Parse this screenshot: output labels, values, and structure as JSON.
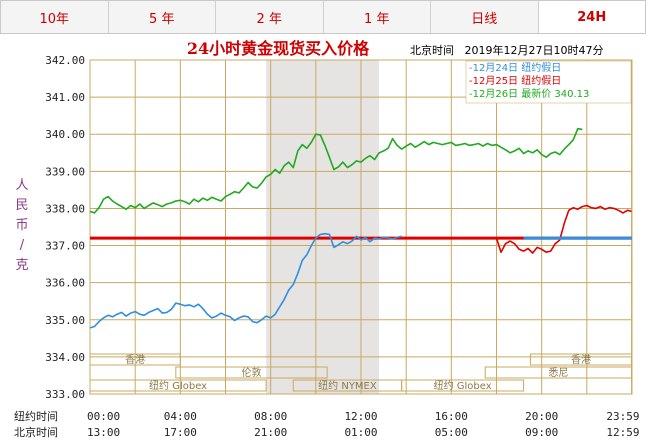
{
  "tabs": [
    {
      "label": "10年",
      "active": false
    },
    {
      "label": "5 年",
      "active": false
    },
    {
      "label": "2 年",
      "active": false
    },
    {
      "label": "1 年",
      "active": false
    },
    {
      "label": "日线",
      "active": false
    },
    {
      "label": "24H",
      "active": true
    }
  ],
  "chart_data": {
    "type": "line",
    "title": "24小时黄金现货买入价格",
    "datetime_label": "北京时间   2019年12月27日10时47分",
    "ylabel": "人民币/克",
    "ylim": [
      333,
      342
    ],
    "yticks": [
      "342.00",
      "341.00",
      "340.00",
      "339.00",
      "338.00",
      "337.00",
      "336.00",
      "335.00",
      "334.00",
      "333.00"
    ],
    "grid": true,
    "legend_position": "top-right",
    "x_axis": {
      "row1_label": "纽约时间",
      "row1_ticks": [
        "00:00",
        "04:00",
        "08:00",
        "12:00",
        "16:00",
        "20:00",
        "23:59"
      ],
      "row2_label": "北京时间",
      "row2_ticks": [
        "13:00",
        "17:00",
        "21:00",
        "01:00",
        "05:00",
        "09:00",
        "12:59"
      ]
    },
    "series": [
      {
        "name": "12月24日   纽约假日",
        "color": "#2f8fe0",
        "x": [
          0,
          0.2,
          0.4,
          0.6,
          0.8,
          1,
          1.2,
          1.4,
          1.6,
          1.8,
          2,
          2.2,
          2.4,
          2.6,
          2.8,
          3,
          3.2,
          3.4,
          3.6,
          3.8,
          4,
          4.2,
          4.4,
          4.6,
          4.8,
          5,
          5.2,
          5.4,
          5.6,
          5.8,
          6,
          6.2,
          6.4,
          6.6,
          6.8,
          7,
          7.2,
          7.4,
          7.6,
          7.8,
          8,
          8.2,
          8.4,
          8.6,
          8.8,
          9,
          9.2,
          9.4,
          9.6,
          9.8,
          10,
          10.2,
          10.4,
          10.6,
          10.8,
          11,
          11.2,
          11.4,
          11.6,
          11.8,
          12,
          12.2,
          12.4,
          12.6,
          12.8,
          13,
          13.2,
          13.4,
          13.6,
          13.8
        ],
        "y": [
          334.78,
          334.82,
          334.95,
          335.05,
          335.12,
          335.08,
          335.15,
          335.2,
          335.1,
          335.18,
          335.22,
          335.15,
          335.12,
          335.2,
          335.25,
          335.3,
          335.18,
          335.2,
          335.28,
          335.45,
          335.42,
          335.38,
          335.4,
          335.35,
          335.42,
          335.3,
          335.15,
          335.05,
          335.1,
          335.18,
          335.12,
          335.08,
          334.98,
          335.05,
          335.1,
          335.08,
          334.95,
          334.92,
          335.0,
          335.1,
          335.05,
          335.15,
          335.35,
          335.55,
          335.8,
          335.95,
          336.25,
          336.6,
          336.75,
          337.0,
          337.2,
          337.3,
          337.32,
          337.3,
          336.95,
          337.02,
          337.1,
          337.05,
          337.12,
          337.25,
          337.15,
          337.22,
          337.1,
          337.2,
          337.18,
          337.22,
          337.2,
          337.18,
          337.22,
          337.25
        ]
      },
      {
        "name": "12月25日   纽约假日",
        "color": "#e00000",
        "x": [
          0,
          13.8,
          14,
          14.2,
          14.4,
          14.6,
          14.8,
          15,
          15.2,
          15.4,
          15.6,
          15.8,
          16,
          16.2,
          16.4,
          16.6,
          16.8,
          17,
          17.2,
          17.4,
          17.6,
          17.8,
          18,
          18.2,
          18.4,
          18.6,
          18.8,
          19,
          19.2,
          19.4,
          19.6,
          19.8,
          20,
          20.2,
          20.4,
          20.6,
          20.8,
          21,
          21.2,
          21.4,
          21.6,
          21.8,
          22,
          22.2,
          22.4,
          22.6,
          22.8,
          23,
          23.2,
          23.4,
          23.6,
          23.8,
          23.98
        ],
        "y": [
          337.2,
          337.2,
          337.2,
          337.2,
          337.2,
          337.2,
          337.2,
          337.2,
          337.2,
          337.2,
          337.2,
          337.2,
          337.2,
          337.2,
          337.2,
          337.2,
          337.2,
          337.2,
          337.2,
          337.2,
          337.2,
          337.2,
          337.2,
          336.82,
          337.05,
          337.12,
          337.05,
          336.9,
          336.85,
          336.92,
          336.8,
          336.95,
          336.9,
          336.82,
          336.85,
          337.05,
          337.15,
          337.6,
          337.95,
          338.02,
          337.98,
          338.05,
          338.08,
          338.02,
          338.0,
          338.05,
          337.98,
          338.02,
          338.0,
          337.95,
          337.88,
          337.95,
          337.92
        ]
      },
      {
        "name": "12月26日   最新价 340.13",
        "color": "#1faa1f",
        "x": [
          0,
          0.2,
          0.4,
          0.6,
          0.8,
          1,
          1.2,
          1.4,
          1.6,
          1.8,
          2,
          2.2,
          2.4,
          2.6,
          2.8,
          3,
          3.2,
          3.4,
          3.6,
          3.8,
          4,
          4.2,
          4.4,
          4.6,
          4.8,
          5,
          5.2,
          5.4,
          5.6,
          5.8,
          6,
          6.2,
          6.4,
          6.6,
          6.8,
          7,
          7.2,
          7.4,
          7.6,
          7.8,
          8,
          8.2,
          8.4,
          8.6,
          8.8,
          9,
          9.2,
          9.4,
          9.6,
          9.8,
          10,
          10.2,
          10.4,
          10.6,
          10.8,
          11,
          11.2,
          11.4,
          11.6,
          11.8,
          12,
          12.2,
          12.4,
          12.6,
          12.8,
          13,
          13.2,
          13.4,
          13.6,
          13.8,
          14,
          14.2,
          14.4,
          14.6,
          14.8,
          15,
          15.2,
          15.4,
          15.6,
          15.8,
          16,
          16.2,
          16.4,
          16.6,
          16.8,
          17,
          17.2,
          17.4,
          17.6,
          17.8,
          18,
          18.2,
          18.4,
          18.6,
          18.8,
          19,
          19.2,
          19.4,
          19.6,
          19.8,
          20,
          20.2,
          20.4,
          20.6,
          20.8,
          21,
          21.2,
          21.4,
          21.6,
          21.8
        ],
        "y": [
          337.92,
          337.88,
          338.02,
          338.25,
          338.32,
          338.2,
          338.12,
          338.05,
          337.98,
          338.08,
          338.02,
          338.12,
          338.0,
          338.08,
          338.15,
          338.1,
          338.05,
          338.12,
          338.15,
          338.2,
          338.22,
          338.18,
          338.12,
          338.25,
          338.18,
          338.28,
          338.22,
          338.3,
          338.25,
          338.2,
          338.32,
          338.38,
          338.45,
          338.42,
          338.55,
          338.7,
          338.58,
          338.55,
          338.68,
          338.85,
          338.92,
          339.05,
          338.95,
          339.15,
          339.25,
          339.1,
          339.55,
          339.72,
          339.62,
          339.78,
          340.0,
          339.98,
          339.7,
          339.38,
          339.05,
          339.12,
          339.25,
          339.1,
          339.18,
          339.28,
          339.25,
          339.35,
          339.42,
          339.32,
          339.5,
          339.55,
          339.62,
          339.88,
          339.7,
          339.6,
          339.68,
          339.75,
          339.65,
          339.72,
          339.8,
          339.72,
          339.78,
          339.75,
          339.72,
          339.75,
          339.78,
          339.7,
          339.72,
          339.75,
          339.7,
          339.72,
          339.75,
          339.68,
          339.75,
          339.7,
          339.72,
          339.65,
          339.58,
          339.5,
          339.55,
          339.62,
          339.48,
          339.55,
          339.5,
          339.58,
          339.45,
          339.38,
          339.48,
          339.52,
          339.45,
          339.6,
          339.72,
          339.85,
          340.15,
          340.13
        ]
      }
    ],
    "reference_line": {
      "y": 337.2,
      "color": "#e00000"
    },
    "shaded_band": {
      "x_start": 7.8,
      "x_end": 12.8,
      "color": "#e6e3e3"
    },
    "market_labels": [
      {
        "text": "香港",
        "row": 1,
        "x_start": 0,
        "x_end": 4
      },
      {
        "text": "香港",
        "row": 1,
        "x_start": 19.5,
        "x_end": 23.98
      },
      {
        "text": "伦敦",
        "row": 2,
        "x_start": 3.8,
        "x_end": 10.5
      },
      {
        "text": "悉尼",
        "row": 2,
        "x_start": 17.5,
        "x_end": 23.98
      },
      {
        "text": "纽约 Globex",
        "row": 3,
        "x_start": 0,
        "x_end": 7.8
      },
      {
        "text": "纽约 NYMEX",
        "row": 3,
        "x_start": 9.0,
        "x_end": 13.8
      },
      {
        "text": "纽约 Globex",
        "row": 3,
        "x_start": 13.8,
        "x_end": 19.2
      }
    ]
  }
}
